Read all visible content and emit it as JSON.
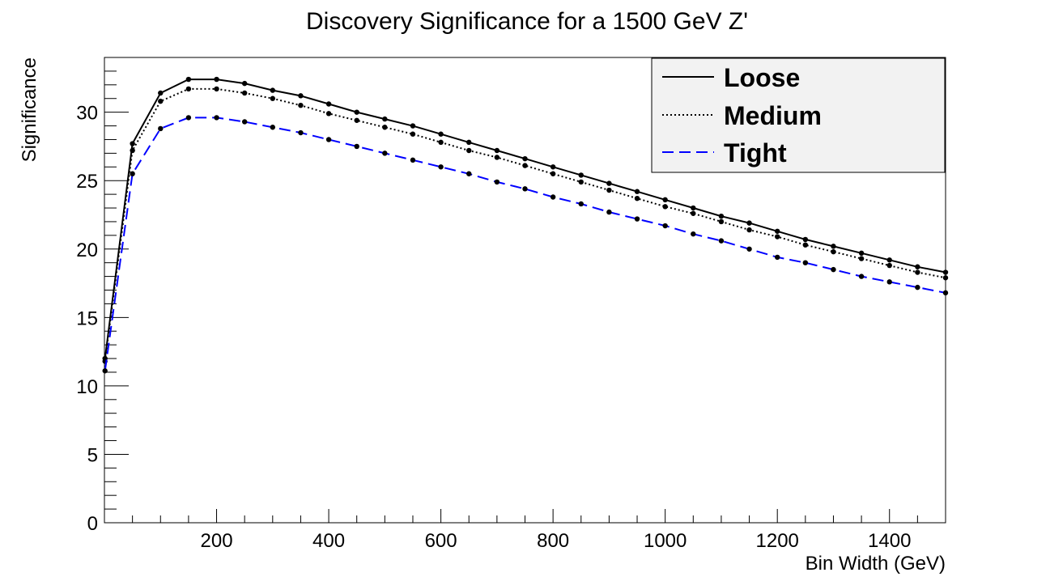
{
  "chart_data": {
    "type": "line",
    "title": "Discovery Significance for a 1500 GeV Z'",
    "xlabel": "Bin Width (GeV)",
    "ylabel": "Significance",
    "xlim": [
      0,
      1500
    ],
    "ylim": [
      0,
      34
    ],
    "xticks": [
      200,
      400,
      600,
      800,
      1000,
      1200,
      1400
    ],
    "yticks": [
      0,
      5,
      10,
      15,
      20,
      25,
      30
    ],
    "grid": false,
    "legend_position": "top-right",
    "x": [
      1,
      50,
      100,
      150,
      200,
      250,
      300,
      350,
      400,
      450,
      500,
      550,
      600,
      650,
      700,
      750,
      800,
      850,
      900,
      950,
      1000,
      1050,
      1100,
      1150,
      1200,
      1250,
      1300,
      1350,
      1400,
      1450,
      1500
    ],
    "series": [
      {
        "name": "Loose",
        "color": "#000000",
        "line_style": "solid",
        "values": [
          12.0,
          27.7,
          31.4,
          32.4,
          32.4,
          32.1,
          31.6,
          31.2,
          30.6,
          30.0,
          29.5,
          29.0,
          28.4,
          27.8,
          27.2,
          26.6,
          26.0,
          25.4,
          24.8,
          24.2,
          23.6,
          23.0,
          22.4,
          21.9,
          21.3,
          20.7,
          20.2,
          19.7,
          19.2,
          18.7,
          18.3
        ]
      },
      {
        "name": "Medium",
        "color": "#000000",
        "line_style": "dotted",
        "values": [
          11.8,
          27.2,
          30.8,
          31.7,
          31.7,
          31.4,
          31.0,
          30.5,
          29.9,
          29.4,
          28.9,
          28.4,
          27.8,
          27.2,
          26.7,
          26.1,
          25.5,
          24.9,
          24.3,
          23.7,
          23.1,
          22.6,
          22.0,
          21.4,
          20.9,
          20.3,
          19.8,
          19.3,
          18.8,
          18.3,
          17.9
        ]
      },
      {
        "name": "Tight",
        "color": "#0000ff",
        "line_style": "dashed",
        "values": [
          11.1,
          25.5,
          28.8,
          29.6,
          29.6,
          29.3,
          28.9,
          28.5,
          28.0,
          27.5,
          27.0,
          26.5,
          26.0,
          25.5,
          24.9,
          24.4,
          23.8,
          23.3,
          22.7,
          22.2,
          21.7,
          21.1,
          20.6,
          20.0,
          19.4,
          19.0,
          18.5,
          18.0,
          17.6,
          17.2,
          16.8
        ]
      }
    ]
  }
}
